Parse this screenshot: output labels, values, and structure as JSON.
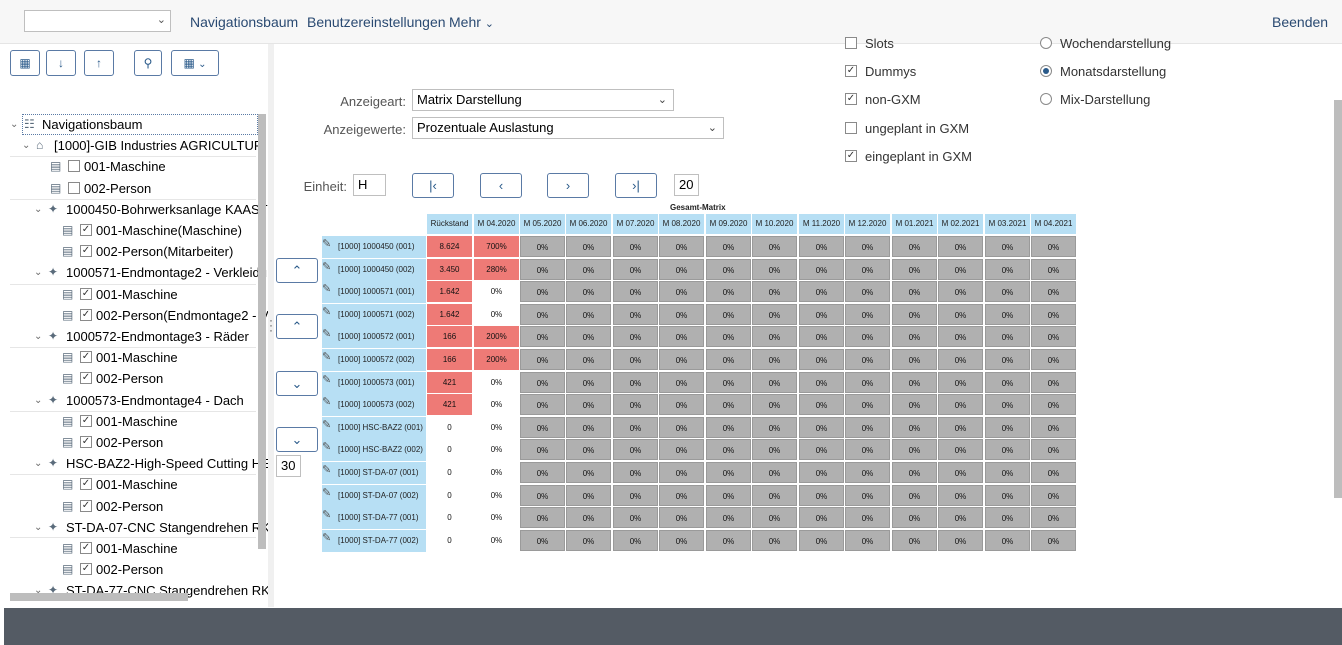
{
  "topbar": {
    "select_value": "",
    "menu": [
      "Navigationsbaum",
      "Benutzereinstellungen",
      "Mehr"
    ],
    "exit": "Beenden"
  },
  "tree": {
    "root": "Navigationsbaum",
    "company": "[1000]-GIB Industries AGRICULTUR",
    "company_children": [
      "001-Maschine",
      "002-Person"
    ],
    "groups": [
      {
        "label": "1000450-Bohrwerksanlage KAAST",
        "children": [
          "001-Maschine(Maschine)",
          "002-Person(Mitarbeiter)"
        ]
      },
      {
        "label": "1000571-Endmontage2 - Verkleidu",
        "children": [
          "001-Maschine",
          "002-Person(Endmontage2 - V"
        ]
      },
      {
        "label": "1000572-Endmontage3 - Räder",
        "children": [
          "001-Maschine",
          "002-Person"
        ]
      },
      {
        "label": "1000573-Endmontage4 - Dach",
        "children": [
          "001-Maschine",
          "002-Person"
        ]
      },
      {
        "label": "HSC-BAZ2-High-Speed Cutting HE",
        "children": [
          "001-Maschine",
          "002-Person"
        ]
      },
      {
        "label": "ST-DA-07-CNC Stangendrehen RK",
        "children": [
          "001-Maschine",
          "002-Person"
        ]
      },
      {
        "label": "ST-DA-77-CNC Stangendrehen RK",
        "children": []
      }
    ]
  },
  "form": {
    "anzeigeart_label": "Anzeigeart:",
    "anzeigeart_value": "Matrix Darstellung",
    "anzeigewerte_label": "Anzeigewerte:",
    "anzeigewerte_value": "Prozentuale Auslastung",
    "einheit_label": "Einheit:",
    "einheit_value": "H",
    "count_top": "20",
    "count_side": "30",
    "checkboxes": [
      {
        "label": "Slots",
        "checked": false
      },
      {
        "label": "Dummys",
        "checked": true
      },
      {
        "label": "non-GXM",
        "checked": true
      },
      {
        "label": "ungeplant in GXM",
        "checked": false
      },
      {
        "label": "eingeplant in GXM",
        "checked": true
      }
    ],
    "radios": [
      {
        "label": "Wochendarstellung",
        "selected": false
      },
      {
        "label": "Monatsdarstellung",
        "selected": true
      },
      {
        "label": "Mix-Darstellung",
        "selected": false
      }
    ]
  },
  "matrix": {
    "title": "Gesamt-Matrix",
    "columns": [
      "Rückstand",
      "M 04.2020",
      "M 05.2020",
      "M 06.2020",
      "M 07.2020",
      "M 08.2020",
      "M 09.2020",
      "M 10.2020",
      "M 11.2020",
      "M 12.2020",
      "M 01.2021",
      "M 02.2021",
      "M 03.2021",
      "M 04.2021"
    ],
    "rows": [
      {
        "label": "[1000] 1000450 (001)",
        "rueck": "8.624",
        "rueck_red": true,
        "m04": "700%",
        "m04_red": true
      },
      {
        "label": "[1000] 1000450 (002)",
        "rueck": "3.450",
        "rueck_red": true,
        "m04": "280%",
        "m04_red": true
      },
      {
        "label": "[1000] 1000571 (001)",
        "rueck": "1.642",
        "rueck_red": true,
        "m04": "0%",
        "m04_red": false
      },
      {
        "label": "[1000] 1000571 (002)",
        "rueck": "1.642",
        "rueck_red": true,
        "m04": "0%",
        "m04_red": false
      },
      {
        "label": "[1000] 1000572 (001)",
        "rueck": "166",
        "rueck_red": true,
        "m04": "200%",
        "m04_red": true
      },
      {
        "label": "[1000] 1000572 (002)",
        "rueck": "166",
        "rueck_red": true,
        "m04": "200%",
        "m04_red": true
      },
      {
        "label": "[1000] 1000573 (001)",
        "rueck": "421",
        "rueck_red": true,
        "m04": "0%",
        "m04_red": false
      },
      {
        "label": "[1000] 1000573 (002)",
        "rueck": "421",
        "rueck_red": true,
        "m04": "0%",
        "m04_red": false
      },
      {
        "label": "[1000] HSC-BAZ2 (001)",
        "rueck": "0",
        "rueck_red": false,
        "m04": "0%",
        "m04_red": false
      },
      {
        "label": "[1000] HSC-BAZ2 (002)",
        "rueck": "0",
        "rueck_red": false,
        "m04": "0%",
        "m04_red": false
      },
      {
        "label": "[1000] ST-DA-07 (001)",
        "rueck": "0",
        "rueck_red": false,
        "m04": "0%",
        "m04_red": false
      },
      {
        "label": "[1000] ST-DA-07 (002)",
        "rueck": "0",
        "rueck_red": false,
        "m04": "0%",
        "m04_red": false
      },
      {
        "label": "[1000] ST-DA-77 (001)",
        "rueck": "0",
        "rueck_red": false,
        "m04": "0%",
        "m04_red": false
      },
      {
        "label": "[1000] ST-DA-77 (002)",
        "rueck": "0",
        "rueck_red": false,
        "m04": "0%",
        "m04_red": false
      }
    ],
    "other_month_value": "0%"
  },
  "colors": {
    "red_cell": "#ee7a76",
    "header": "#b7dff4",
    "grey_cell": "#b0b0b0",
    "bottom_bar": "#545b64"
  }
}
